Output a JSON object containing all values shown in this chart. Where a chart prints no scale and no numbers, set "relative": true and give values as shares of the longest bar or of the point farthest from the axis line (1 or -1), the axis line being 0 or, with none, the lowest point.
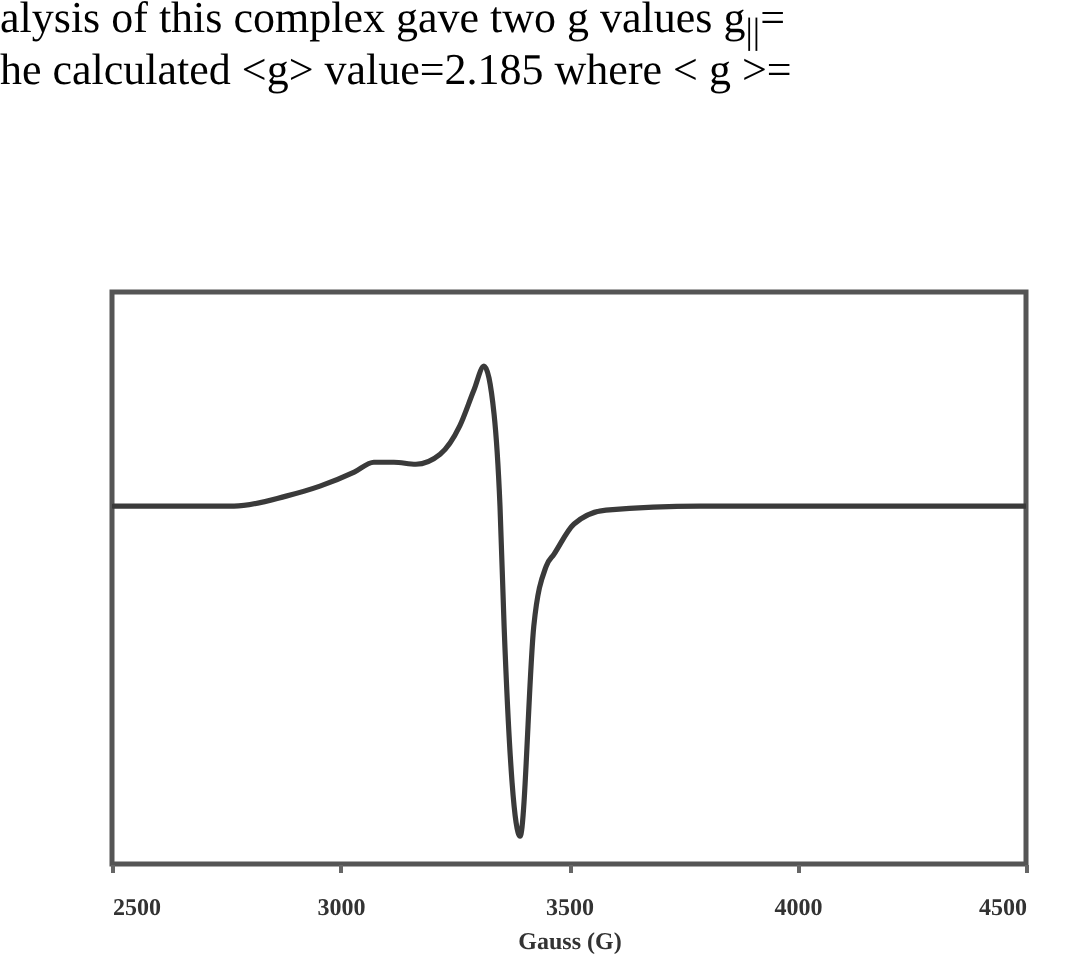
{
  "chart_data": {
    "type": "line",
    "relative": true,
    "xlabel": "Gauss (G)",
    "annotations": [
      "alysis of this complex gave two g values g$_{||}$=",
      "he calculated <g> value=2.185 where < g >="
    ],
    "xlim": [
      2500,
      4500
    ],
    "xticks": [
      2500,
      3000,
      3500,
      4000,
      4500
    ],
    "x": [
      2504,
      2767,
      2881,
      2955,
      3030,
      3073,
      3117,
      3165,
      3218,
      3261,
      3292,
      3314,
      3336,
      3349,
      3358,
      3393,
      3423,
      3450,
      3467,
      3511,
      3581,
      3787,
      4500
    ],
    "series": [
      {
        "color": "#3a3a3a",
        "values": [
          0.719,
          0.719,
          0.739,
          0.759,
          0.787,
          0.807,
          0.807,
          0.803,
          0.823,
          0.88,
          0.952,
          1.0,
          0.904,
          0.719,
          0.478,
          0.056,
          0.478,
          0.598,
          0.622,
          0.683,
          0.711,
          0.719,
          0.719
        ]
      }
    ]
  }
}
